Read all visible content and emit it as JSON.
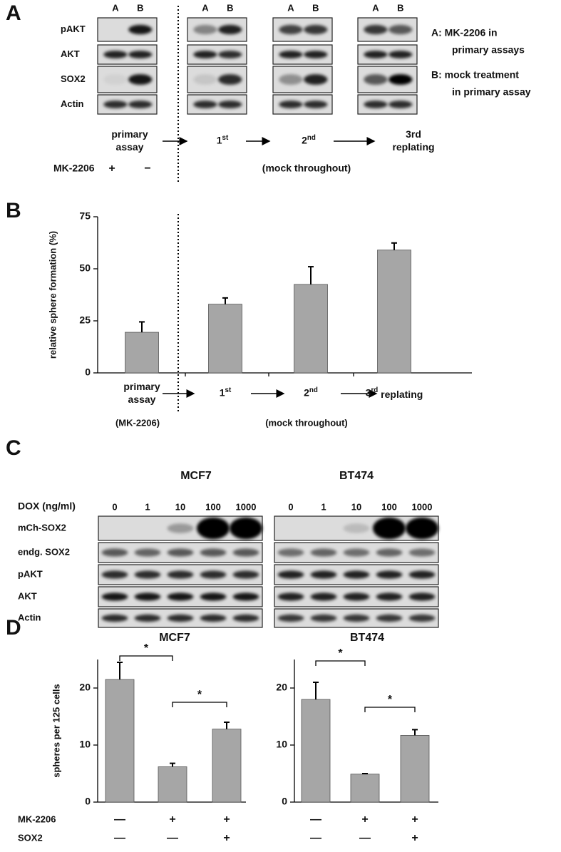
{
  "panel_labels": [
    "A",
    "B",
    "C",
    "D"
  ],
  "panel_a": {
    "lanes": [
      "A",
      "B"
    ],
    "rows": [
      "pAKT",
      "AKT",
      "SOX2",
      "Actin"
    ],
    "legend": [
      "A:  MK-2206 in",
      "primary assays",
      "B:  mock treatment",
      "in primary assay"
    ],
    "steps": [
      "primary assay",
      "1st",
      "2nd",
      "3rd replating"
    ],
    "treatment_label": "MK-2206",
    "treatment": [
      "+",
      "−"
    ],
    "note": "(mock throughout)"
  },
  "panel_c": {
    "titles": [
      "MCF7",
      "BT474"
    ],
    "dose_label": "DOX (ng/ml)",
    "doses": [
      "0",
      "1",
      "10",
      "100",
      "1000"
    ],
    "rows": [
      "mCh-SOX2",
      "endg. SOX2",
      "pAKT",
      "AKT",
      "Actin"
    ]
  },
  "chart_data": [
    {
      "type": "bar",
      "y_label": "relative sphere formation (%)",
      "categories": [
        "primary assay",
        "1st",
        "2nd",
        "3rd replating"
      ],
      "values": [
        19.5,
        33,
        42.5,
        59
      ],
      "errors": [
        5,
        3,
        8.5,
        3.4
      ],
      "ylim": [
        0,
        75
      ],
      "yticks": [
        0,
        25,
        50,
        75
      ],
      "color": "#a6a6a6",
      "annotations": [
        "(MK-2206)",
        "(mock throughout)"
      ]
    },
    {
      "type": "bar",
      "title": "MCF7",
      "y_label": "spheres per 125 cells",
      "values": [
        21.5,
        6.2,
        12.8
      ],
      "errors": [
        3,
        0.6,
        1.2
      ],
      "ylim": [
        0,
        25
      ],
      "yticks": [
        0,
        10,
        20
      ],
      "color": "#a6a6a6",
      "conditions": [
        {
          "name": "MK-2206",
          "values": [
            "—",
            "+",
            "+"
          ]
        },
        {
          "name": "SOX2",
          "values": [
            "—",
            "—",
            "+"
          ]
        }
      ],
      "significance": [
        "*",
        "*"
      ]
    },
    {
      "type": "bar",
      "title": "BT474",
      "values": [
        18,
        4.9,
        11.7
      ],
      "errors": [
        3,
        0.1,
        1
      ],
      "ylim": [
        0,
        25
      ],
      "yticks": [
        0,
        10,
        20
      ],
      "color": "#a6a6a6",
      "conditions": [
        {
          "values": [
            "—",
            "+",
            "+"
          ]
        },
        {
          "values": [
            "—",
            "—",
            "+"
          ]
        }
      ],
      "significance": [
        "*",
        "*"
      ]
    }
  ]
}
